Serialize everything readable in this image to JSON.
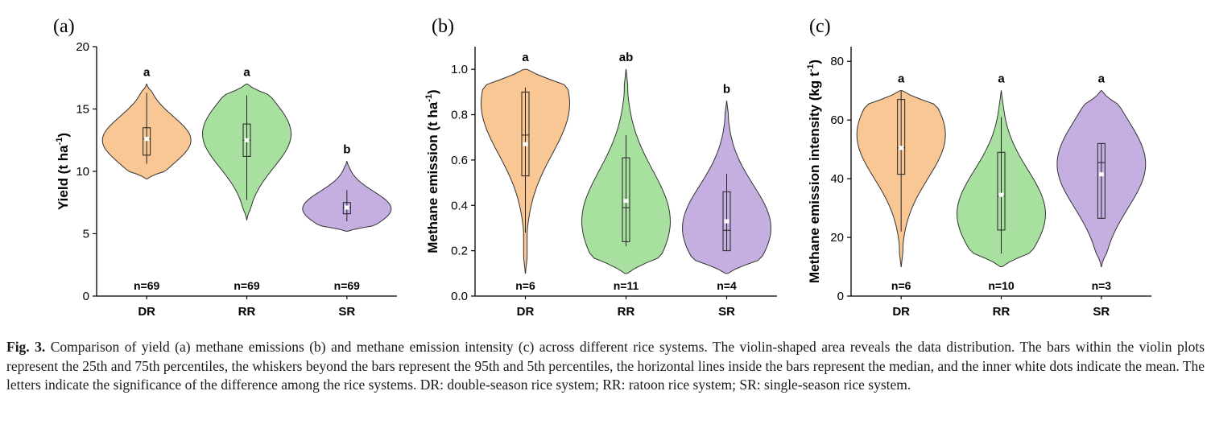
{
  "chart_data": [
    {
      "type": "violin",
      "panel_label": "(a)",
      "ylabel": "Yield (t ha",
      "ylabel_sup": "-1",
      "ylabel_close": ")",
      "ylim": [
        0,
        20
      ],
      "yticks": [
        "0",
        "5",
        "10",
        "15",
        "20"
      ],
      "categories": [
        "DR",
        "RR",
        "SR"
      ],
      "series": [
        {
          "category": "DR",
          "color": "#f8c794",
          "letter": "a",
          "n": "n=69",
          "violin_min": 9.4,
          "violin_max": 17.0,
          "density_peak": 12.5,
          "q1": 11.3,
          "median": 12.6,
          "q3": 13.5,
          "mean": 12.6,
          "whisker_low": 10.6,
          "whisker_high": 16.3
        },
        {
          "category": "RR",
          "color": "#a8e0a0",
          "letter": "a",
          "n": "n=69",
          "violin_min": 6.1,
          "violin_max": 17.0,
          "density_peak": 13.0,
          "q1": 11.2,
          "median": 12.5,
          "q3": 13.8,
          "mean": 12.5,
          "whisker_low": 7.7,
          "whisker_high": 16.1
        },
        {
          "category": "SR",
          "color": "#c4afe0",
          "letter": "b",
          "n": "n=69",
          "violin_min": 5.2,
          "violin_max": 10.8,
          "density_peak": 7.0,
          "q1": 6.6,
          "median": 7.1,
          "q3": 7.5,
          "mean": 7.1,
          "whisker_low": 6.0,
          "whisker_high": 8.5
        }
      ]
    },
    {
      "type": "violin",
      "panel_label": "(b)",
      "ylabel": "Methane emission (t ha",
      "ylabel_sup": "-1",
      "ylabel_close": ")",
      "ylim": [
        0,
        1.1
      ],
      "yticks": [
        "0.0",
        "0.2",
        "0.4",
        "0.6",
        "0.8",
        "1.0"
      ],
      "categories": [
        "DR",
        "RR",
        "SR"
      ],
      "series": [
        {
          "category": "DR",
          "color": "#f8c794",
          "letter": "a",
          "n": "n=6",
          "violin_min": 0.1,
          "violin_max": 1.0,
          "density_peak": 0.85,
          "q1": 0.53,
          "median": 0.71,
          "q3": 0.9,
          "mean": 0.67,
          "whisker_low": 0.28,
          "whisker_high": 0.92
        },
        {
          "category": "RR",
          "color": "#a8e0a0",
          "letter": "ab",
          "n": "n=11",
          "violin_min": 0.1,
          "violin_max": 1.0,
          "density_peak": 0.33,
          "q1": 0.24,
          "median": 0.39,
          "q3": 0.61,
          "mean": 0.42,
          "whisker_low": 0.22,
          "whisker_high": 0.71
        },
        {
          "category": "SR",
          "color": "#c4afe0",
          "letter": "b",
          "n": "n=4",
          "violin_min": 0.1,
          "violin_max": 0.86,
          "density_peak": 0.3,
          "q1": 0.2,
          "median": 0.29,
          "q3": 0.46,
          "mean": 0.33,
          "whisker_low": 0.2,
          "whisker_high": 0.54
        }
      ]
    },
    {
      "type": "violin",
      "panel_label": "(c)",
      "ylabel": "Methane emission intensity (kg t",
      "ylabel_sup": "-1",
      "ylabel_close": ")",
      "ylim": [
        0,
        85
      ],
      "yticks": [
        "0",
        "20",
        "40",
        "60",
        "80"
      ],
      "categories": [
        "DR",
        "RR",
        "SR"
      ],
      "series": [
        {
          "category": "DR",
          "color": "#f8c794",
          "letter": "a",
          "n": "n=6",
          "violin_min": 10,
          "violin_max": 70,
          "density_peak": 55,
          "q1": 41.5,
          "median": 50.5,
          "q3": 67,
          "mean": 50.5,
          "whisker_low": 22,
          "whisker_high": 70
        },
        {
          "category": "RR",
          "color": "#a8e0a0",
          "letter": "a",
          "n": "n=10",
          "violin_min": 10,
          "violin_max": 70,
          "density_peak": 28,
          "q1": 22.5,
          "median": 34,
          "q3": 49,
          "mean": 34.5,
          "whisker_low": 14.5,
          "whisker_high": 61
        },
        {
          "category": "SR",
          "color": "#c4afe0",
          "letter": "a",
          "n": "n=3",
          "violin_min": 10,
          "violin_max": 70,
          "density_peak": 45,
          "q1": 26.5,
          "median": 45.5,
          "q3": 52,
          "mean": 41.5,
          "whisker_low": 26.5,
          "whisker_high": 52
        }
      ]
    }
  ],
  "caption": {
    "fig_label": "Fig. 3.",
    "text": "Comparison of yield (a) methane emissions (b) and methane emission intensity (c) across different rice systems. The violin-shaped area reveals the data distribution. The bars within the violin plots represent the 25th and 75th percentiles, the whiskers beyond the bars represent the 95th and 5th percentiles, the horizontal lines inside the bars represent the median, and the inner white dots indicate the mean. The letters indicate the significance of the difference among the rice systems. DR: double-season rice system; RR: ratoon rice system; SR: single-season rice system."
  }
}
